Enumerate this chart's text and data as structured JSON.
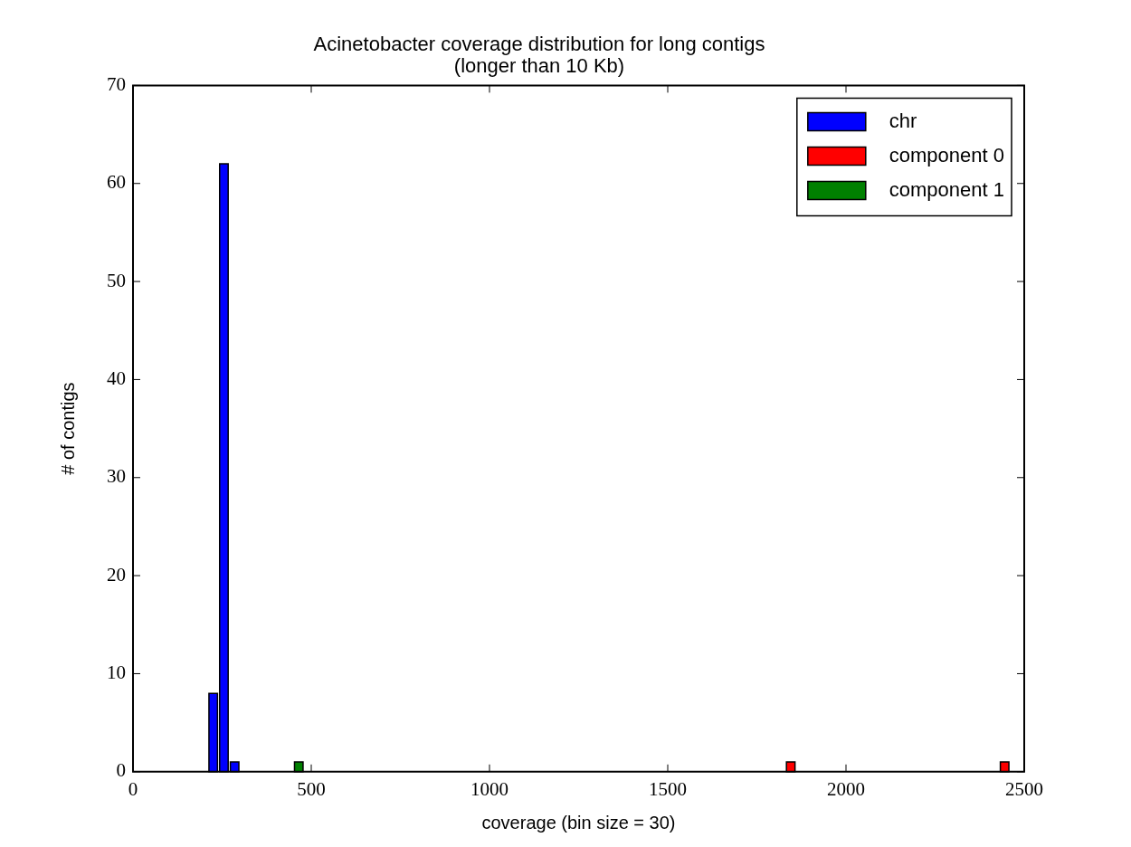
{
  "chart_data": {
    "type": "histogram",
    "title": "Acinetobacter coverage distribution for long contigs\n(longer than 10 Kb)",
    "xlabel": "coverage (bin size = 30)",
    "ylabel": "# of contigs",
    "bins": [
      0,
      30,
      60,
      90,
      120,
      150,
      180,
      210,
      240,
      270,
      300,
      330,
      360,
      390,
      420,
      450,
      480,
      510,
      540,
      570,
      600,
      630,
      660,
      690,
      720,
      750,
      780,
      810,
      840,
      870,
      900,
      930,
      960,
      990,
      1020,
      1050,
      1080,
      1110,
      1140,
      1170,
      1200,
      1230,
      1260,
      1290,
      1320,
      1350,
      1380,
      1410,
      1440,
      1470,
      1500,
      1530,
      1560,
      1590,
      1620,
      1650,
      1680,
      1710,
      1740,
      1770,
      1800,
      1830,
      1860,
      1890,
      1920,
      1950,
      1980,
      2010,
      2040,
      2070,
      2100,
      2130,
      2160,
      2190,
      2220,
      2250,
      2280,
      2310,
      2340,
      2370,
      2400,
      2430,
      2460
    ],
    "series": [
      {
        "name": "chr",
        "color": "#0000ff",
        "values": [
          0,
          0,
          0,
          0,
          0,
          0,
          0,
          8,
          62,
          1,
          0,
          0,
          0,
          0,
          0,
          0,
          0,
          0,
          0,
          0,
          0,
          0,
          0,
          0,
          0,
          0,
          0,
          0,
          0,
          0,
          0,
          0,
          0,
          0,
          0,
          0,
          0,
          0,
          0,
          0,
          0,
          0,
          0,
          0,
          0,
          0,
          0,
          0,
          0,
          0,
          0,
          0,
          0,
          0,
          0,
          0,
          0,
          0,
          0,
          0,
          0,
          0,
          0,
          0,
          0,
          0,
          0,
          0,
          0,
          0,
          0,
          0,
          0,
          0,
          0,
          0,
          0,
          0,
          0,
          0,
          0,
          0
        ]
      },
      {
        "name": "component 0",
        "color": "#ff0000",
        "values": [
          0,
          0,
          0,
          0,
          0,
          0,
          0,
          0,
          0,
          0,
          0,
          0,
          0,
          0,
          0,
          0,
          0,
          0,
          0,
          0,
          0,
          0,
          0,
          0,
          0,
          0,
          0,
          0,
          0,
          0,
          0,
          0,
          0,
          0,
          0,
          0,
          0,
          0,
          0,
          0,
          0,
          0,
          0,
          0,
          0,
          0,
          0,
          0,
          0,
          0,
          0,
          0,
          0,
          0,
          0,
          0,
          0,
          0,
          0,
          0,
          0,
          1,
          0,
          0,
          0,
          0,
          0,
          0,
          0,
          0,
          0,
          0,
          0,
          0,
          0,
          0,
          0,
          0,
          0,
          0,
          0,
          1
        ]
      },
      {
        "name": "component 1",
        "color": "#008000",
        "values": [
          0,
          0,
          0,
          0,
          0,
          0,
          0,
          0,
          0,
          0,
          0,
          0,
          0,
          0,
          0,
          1,
          0,
          0,
          0,
          0,
          0,
          0,
          0,
          0,
          0,
          0,
          0,
          0,
          0,
          0,
          0,
          0,
          0,
          0,
          0,
          0,
          0,
          0,
          0,
          0,
          0,
          0,
          0,
          0,
          0,
          0,
          0,
          0,
          0,
          0,
          0,
          0,
          0,
          0,
          0,
          0,
          0,
          0,
          0,
          0,
          0,
          0,
          0,
          0,
          0,
          0,
          0,
          0,
          0,
          0,
          0,
          0,
          0,
          0,
          0,
          0,
          0,
          0,
          0,
          0,
          0,
          0
        ]
      }
    ],
    "xlim": [
      0,
      2500
    ],
    "xticks": [
      0,
      500,
      1000,
      1500,
      2000,
      2500
    ],
    "ylim": [
      0,
      70
    ],
    "yticks": [
      0,
      10,
      20,
      30,
      40,
      50,
      60,
      70
    ],
    "grid": false,
    "legend": "top right"
  }
}
